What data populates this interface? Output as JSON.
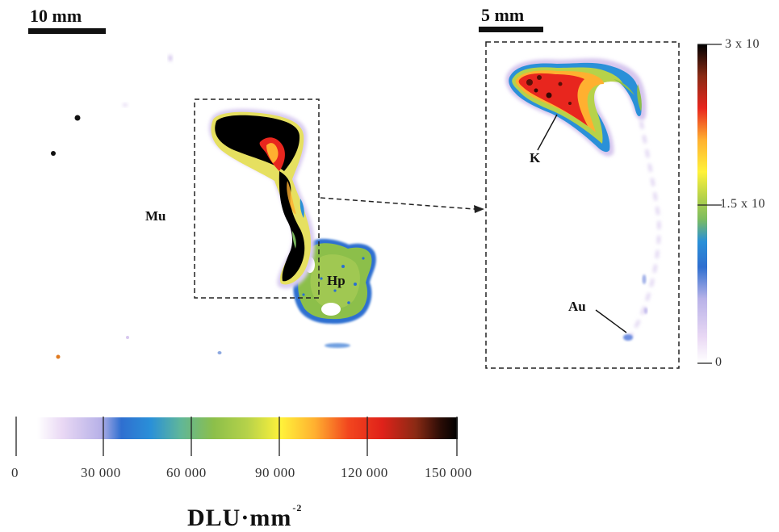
{
  "figure": {
    "left_panel": {
      "scale_label": "10 mm",
      "labels": {
        "mu": "Mu",
        "hp": "Hp"
      }
    },
    "right_panel": {
      "scale_label": "5 mm",
      "labels": {
        "k": "K",
        "au": "Au"
      }
    },
    "vertical_colorbar": {
      "top_label": "3 x 10",
      "mid_label": "1.5 x 10",
      "bottom_label": "0"
    },
    "horizontal_colorbar": {
      "tick_labels": [
        "0",
        "30 000",
        "60 000",
        "90 000",
        "120 000",
        "150 000"
      ],
      "unit": "DLU·mm",
      "unit_exponent": "-2"
    },
    "colors": {
      "low": "#e6d3f2",
      "blue": "#2a7fd4",
      "green": "#8dc24a",
      "yellow": "#ffef3a",
      "red": "#e8261e",
      "dark": "#4a1a10",
      "black": "#000000"
    }
  }
}
